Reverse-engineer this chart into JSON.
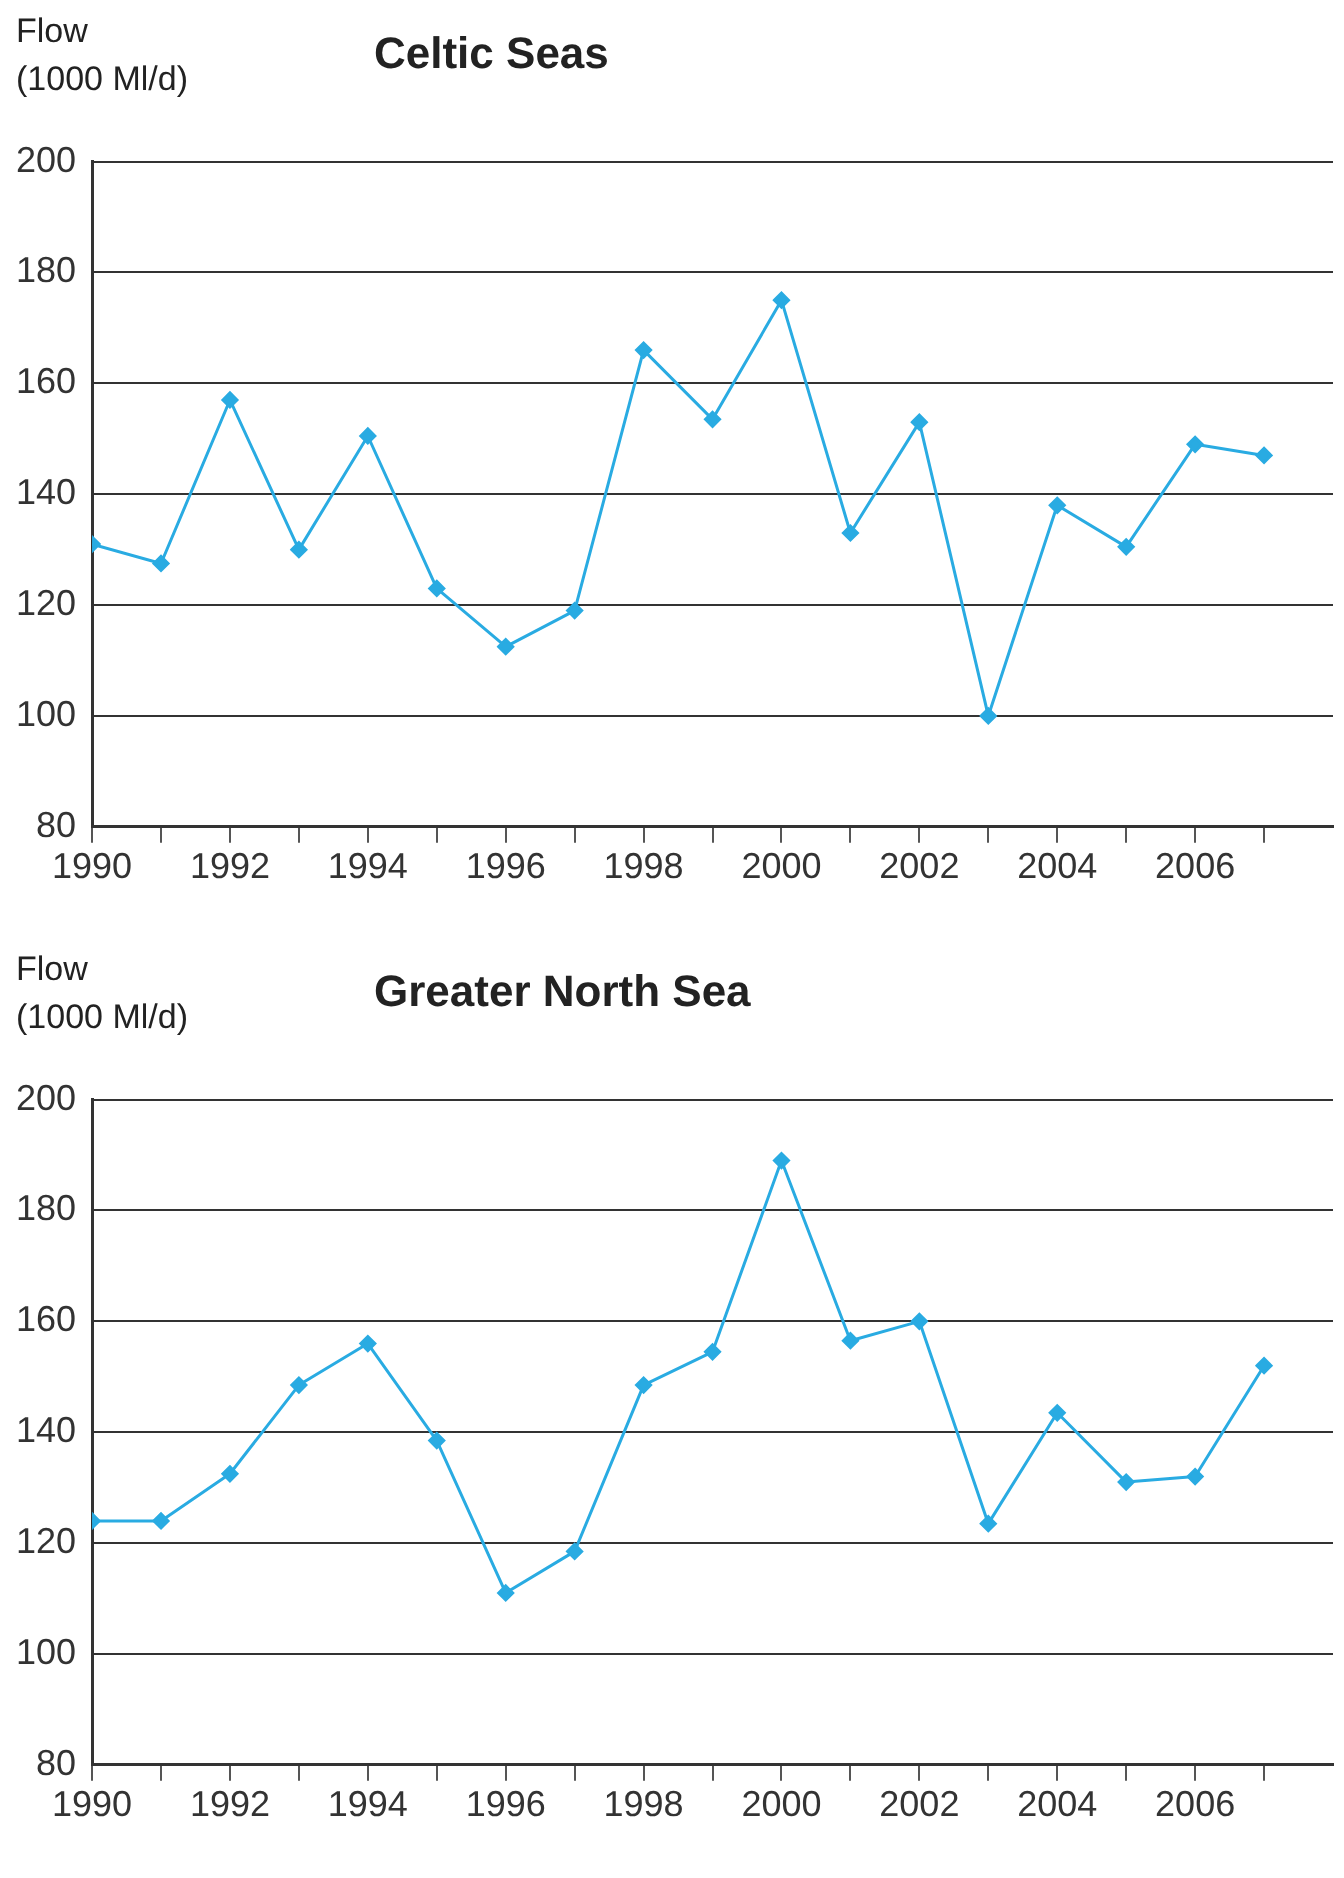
{
  "chart_data": [
    {
      "type": "line",
      "title": "Celtic Seas",
      "ylabel": "Flow\n(1000 Ml/d)",
      "x": [
        1990,
        1991,
        1992,
        1993,
        1994,
        1995,
        1996,
        1997,
        1998,
        1999,
        2000,
        2001,
        2002,
        2003,
        2004,
        2005,
        2006,
        2007
      ],
      "series": [
        {
          "color": "#29abe2",
          "values": [
            131,
            127.5,
            157,
            130,
            150.5,
            123,
            112.5,
            119,
            166,
            153.5,
            175,
            133,
            153,
            100,
            138,
            130.5,
            149,
            147
          ]
        }
      ],
      "xlim": [
        1990,
        2008
      ],
      "xticks": [
        1990,
        {
          "value": 1991,
          "label": null
        },
        1992,
        {
          "value": 1993,
          "label": null
        },
        1994,
        {
          "value": 1995,
          "label": null
        },
        1996,
        {
          "value": 1997,
          "label": null
        },
        1998,
        {
          "value": 1999,
          "label": null
        },
        2000,
        {
          "value": 2001,
          "label": null
        },
        2002,
        {
          "value": 2003,
          "label": null
        },
        2004,
        {
          "value": 2005,
          "label": null
        },
        2006,
        {
          "value": 2007,
          "label": null
        }
      ],
      "ylim": [
        80,
        200
      ],
      "yticks": [
        80,
        100,
        120,
        140,
        160,
        180,
        200
      ],
      "grid": "y",
      "legend": false,
      "marker": "diamond",
      "line_style": "solid"
    },
    {
      "type": "line",
      "title": "Greater North Sea",
      "ylabel": "Flow\n(1000 Ml/d)",
      "x": [
        1990,
        1991,
        1992,
        1993,
        1994,
        1995,
        1996,
        1997,
        1998,
        1999,
        2000,
        2001,
        2002,
        2003,
        2004,
        2005,
        2006,
        2007
      ],
      "series": [
        {
          "color": "#29abe2",
          "values": [
            124,
            124,
            132.5,
            148.5,
            156,
            138.5,
            111,
            118.5,
            148.5,
            154.5,
            189,
            156.5,
            160,
            123.5,
            143.5,
            131,
            132,
            152
          ]
        }
      ],
      "xlim": [
        1990,
        2008
      ],
      "xticks": [
        1990,
        {
          "value": 1991,
          "label": null
        },
        1992,
        {
          "value": 1993,
          "label": null
        },
        1994,
        {
          "value": 1995,
          "label": null
        },
        1996,
        {
          "value": 1997,
          "label": null
        },
        1998,
        {
          "value": 1999,
          "label": null
        },
        2000,
        {
          "value": 2001,
          "label": null
        },
        2002,
        {
          "value": 2003,
          "label": null
        },
        2004,
        {
          "value": 2005,
          "label": null
        },
        2006,
        {
          "value": 2007,
          "label": null
        }
      ],
      "ylim": [
        80,
        200
      ],
      "yticks": [
        80,
        100,
        120,
        140,
        160,
        180,
        200
      ],
      "grid": "y",
      "legend": false,
      "marker": "diamond",
      "line_style": "solid"
    }
  ]
}
